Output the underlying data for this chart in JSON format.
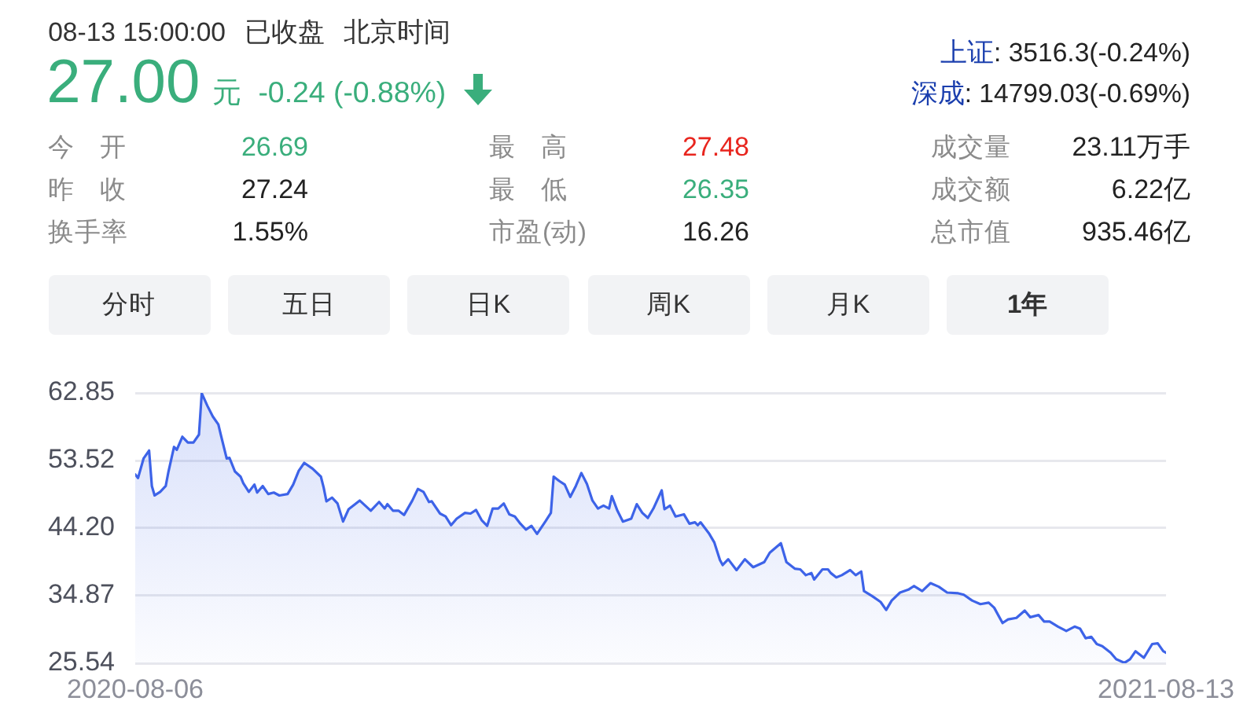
{
  "chart_data": [
    {
      "type": "other",
      "annotations": [
        "08-13 15:00:00",
        "已收盘",
        "北京时间",
        "27.00",
        "元",
        "-0.24 (-0.88%)",
        "上证",
        ": 3516.3(-0.24%)",
        "深成",
        ": 14799.03(-0.69%)",
        "今 开",
        "26.69",
        "最 高",
        "27.48",
        "成交量",
        "23.11万手",
        "昨 收",
        "27.24",
        "最 低",
        "26.35",
        "成交额",
        "6.22亿",
        "换手率",
        "1.55%",
        "市盈(动)",
        "16.26",
        "总市值",
        "935.46亿",
        "分时",
        "五日",
        "日K",
        "周K",
        "月K",
        "1年"
      ]
    },
    {
      "type": "area",
      "x": [
        "2020-08-06",
        "2020-08-07",
        "2020-08-09",
        "2020-08-11",
        "2020-08-12",
        "2020-08-13",
        "2020-08-15",
        "2020-08-17",
        "2020-08-18",
        "2020-08-20",
        "2020-08-21",
        "2020-08-23",
        "2020-08-25",
        "2020-08-27",
        "2020-08-29",
        "2020-08-30",
        "2020-09-01",
        "2020-09-03",
        "2020-09-05",
        "2020-09-06",
        "2020-09-08",
        "2020-09-09",
        "2020-09-11",
        "2020-09-13",
        "2020-09-14",
        "2020-09-16",
        "2020-09-18",
        "2020-09-19",
        "2020-09-21",
        "2020-09-23",
        "2020-09-25",
        "2020-09-27",
        "2020-09-30",
        "2020-10-02",
        "2020-10-04",
        "2020-10-06",
        "2020-10-09",
        "2020-10-12",
        "2020-10-13",
        "2020-10-14",
        "2020-10-16",
        "2020-10-18",
        "2020-10-20",
        "2020-10-22",
        "2020-10-26",
        "2020-10-30",
        "2020-11-02",
        "2020-11-04",
        "2020-11-05",
        "2020-11-07",
        "2020-11-09",
        "2020-11-11",
        "2020-11-14",
        "2020-11-16",
        "2020-11-18",
        "2020-11-20",
        "2020-11-21",
        "2020-11-24",
        "2020-11-26",
        "2020-11-28",
        "2020-11-30",
        "2020-12-03",
        "2020-12-05",
        "2020-12-07",
        "2020-12-09",
        "2020-12-11",
        "2020-12-13",
        "2020-12-15",
        "2020-12-17",
        "2020-12-19",
        "2020-12-21",
        "2020-12-23",
        "2020-12-25",
        "2020-12-27",
        "2020-12-29",
        "2021-01-01",
        "2021-01-03",
        "2021-01-04",
        "2021-01-06",
        "2021-01-08",
        "2021-01-10",
        "2021-01-12",
        "2021-01-14",
        "2021-01-16",
        "2021-01-18",
        "2021-01-20",
        "2021-01-22",
        "2021-01-24",
        "2021-01-25",
        "2021-01-27",
        "2021-01-29",
        "2021-02-01",
        "2021-02-03",
        "2021-02-05",
        "2021-02-07",
        "2021-02-09",
        "2021-02-12",
        "2021-02-13",
        "2021-02-15",
        "2021-02-17",
        "2021-02-20",
        "2021-02-22",
        "2021-02-24",
        "2021-02-25",
        "2021-02-26",
        "2021-03-01",
        "2021-03-03",
        "2021-03-05",
        "2021-03-06",
        "2021-03-08",
        "2021-03-11",
        "2021-03-14",
        "2021-03-17",
        "2021-03-21",
        "2021-03-23",
        "2021-03-27",
        "2021-03-29",
        "2021-04-01",
        "2021-04-03",
        "2021-04-05",
        "2021-04-07",
        "2021-04-08",
        "2021-04-11",
        "2021-04-13",
        "2021-04-14",
        "2021-04-16",
        "2021-04-18",
        "2021-04-21",
        "2021-04-23",
        "2021-04-25",
        "2021-04-26",
        "2021-04-29",
        "2021-05-02",
        "2021-05-04",
        "2021-05-06",
        "2021-05-09",
        "2021-05-12",
        "2021-05-14",
        "2021-05-17",
        "2021-05-20",
        "2021-05-23",
        "2021-05-26",
        "2021-05-30",
        "2021-06-01",
        "2021-06-04",
        "2021-06-07",
        "2021-06-10",
        "2021-06-12",
        "2021-06-15",
        "2021-06-17",
        "2021-06-20",
        "2021-06-23",
        "2021-06-25",
        "2021-06-28",
        "2021-06-30",
        "2021-07-02",
        "2021-07-05",
        "2021-07-08",
        "2021-07-11",
        "2021-07-13",
        "2021-07-15",
        "2021-07-17",
        "2021-07-19",
        "2021-07-21",
        "2021-07-24",
        "2021-07-26",
        "2021-07-29",
        "2021-07-31",
        "2021-08-02",
        "2021-08-04",
        "2021-08-05",
        "2021-08-08",
        "2021-08-10",
        "2021-08-12",
        "2021-08-13"
      ],
      "series": [
        {
          "color": "#3d63e8",
          "values": [
            51.6,
            51.1,
            53.8,
            54.9,
            50.0,
            48.7,
            49.2,
            50.0,
            52.0,
            55.4,
            55.0,
            56.8,
            56.0,
            56.0,
            57.1,
            62.8,
            61.1,
            59.6,
            58.5,
            56.9,
            53.8,
            53.9,
            52.0,
            51.3,
            50.4,
            49.2,
            50.2,
            49.1,
            50.0,
            48.9,
            49.1,
            48.7,
            48.9,
            50.2,
            52.1,
            53.2,
            52.4,
            51.3,
            49.8,
            47.9,
            48.4,
            47.6,
            45.1,
            46.8,
            48.0,
            46.6,
            47.8,
            46.9,
            47.5,
            46.6,
            46.6,
            46.0,
            48.0,
            49.6,
            49.2,
            47.8,
            47.9,
            46.2,
            45.8,
            44.6,
            45.5,
            46.3,
            46.2,
            46.7,
            45.3,
            44.5,
            46.9,
            46.9,
            47.6,
            46.1,
            45.8,
            44.8,
            44.0,
            44.5,
            43.4,
            45.1,
            46.3,
            51.3,
            50.7,
            50.2,
            48.5,
            50.0,
            51.8,
            50.3,
            48.0,
            46.9,
            47.3,
            46.9,
            48.6,
            46.6,
            45.1,
            45.5,
            47.5,
            46.3,
            45.6,
            46.9,
            49.4,
            46.8,
            47.3,
            45.8,
            46.1,
            44.8,
            45.0,
            44.6,
            45.0,
            43.5,
            42.2,
            39.8,
            39.1,
            39.9,
            38.4,
            39.9,
            38.8,
            39.5,
            40.8,
            42.1,
            39.5,
            38.6,
            38.5,
            37.7,
            38.0,
            37.1,
            38.5,
            38.5,
            38.0,
            37.4,
            37.7,
            38.4,
            37.7,
            38.2,
            35.5,
            34.8,
            34.0,
            32.9,
            34.2,
            35.3,
            35.7,
            36.2,
            35.5,
            36.6,
            36.1,
            35.3,
            35.2,
            35.0,
            34.2,
            33.7,
            33.9,
            33.2,
            31.1,
            31.6,
            31.8,
            32.8,
            31.9,
            32.2,
            31.3,
            31.3,
            30.6,
            30.0,
            30.6,
            30.3,
            29.0,
            29.2,
            28.2,
            27.9,
            27.0,
            26.1,
            25.6,
            26.1,
            27.2,
            26.6,
            26.3,
            28.2,
            28.3,
            27.2,
            27.0
          ]
        }
      ],
      "xlim": [
        "2020-08-06",
        "2021-08-13"
      ],
      "xticks": [
        "2020-08-06",
        "2021-08-13"
      ],
      "ylim": [
        25.54,
        62.85
      ],
      "yticks": [
        25.54,
        34.87,
        {
          "value": 44.2,
          "label": "44.20"
        },
        53.52,
        62.85
      ],
      "grid": "y"
    }
  ]
}
